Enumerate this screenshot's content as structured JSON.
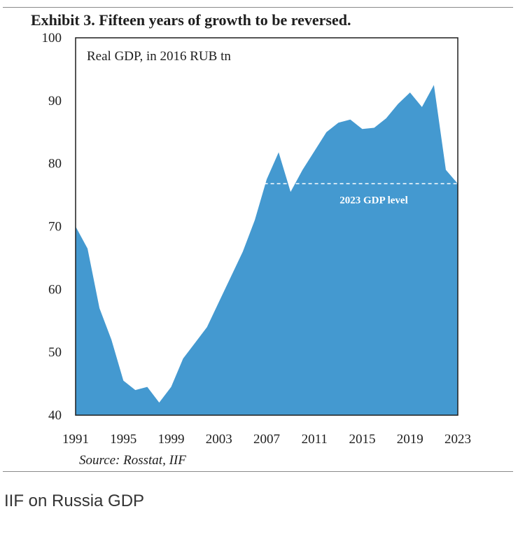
{
  "header": {
    "exhibit_title": "Exhibit 3. Fifteen years of growth to be reversed."
  },
  "footer": {
    "source": "Source: Rosstat, IIF",
    "caption": "IIF on Russia GDP"
  },
  "colors": {
    "area_fill": "#4499d0",
    "reference_line": "#ffffff",
    "text": "#1e1e1e"
  },
  "chart_data": {
    "type": "area",
    "title": "Real GDP, in 2016 RUB tn",
    "xlabel": "",
    "ylabel": "",
    "xlim": [
      1991,
      2023
    ],
    "ylim": [
      40,
      100
    ],
    "grid": false,
    "legend": "none",
    "x_ticks": [
      "1991",
      "1995",
      "1999",
      "2003",
      "2007",
      "2011",
      "2015",
      "2019",
      "2023"
    ],
    "y_ticks": [
      "100",
      "90",
      "80",
      "70",
      "60",
      "50",
      "40"
    ],
    "series": [
      {
        "x": [
          1991,
          1992,
          1993,
          1994,
          1995,
          1996,
          1997,
          1998,
          1999,
          2000,
          2001,
          2002,
          2003,
          2004,
          2005,
          2006,
          2007,
          2008,
          2009,
          2010,
          2011,
          2012,
          2013,
          2014,
          2015,
          2016,
          2017,
          2018,
          2019,
          2020,
          2021,
          2022,
          2023
        ],
        "values": [
          70,
          66.5,
          57,
          52,
          45.5,
          44,
          44.5,
          42,
          44.5,
          49,
          51.5,
          54,
          58,
          62,
          66,
          71,
          77.5,
          81.8,
          75.5,
          79,
          82,
          85,
          86.5,
          87,
          85.5,
          85.7,
          87.2,
          89.5,
          91.3,
          89,
          92.5,
          79,
          76.8
        ]
      }
    ],
    "reference_line": {
      "value": 76.8,
      "label": "2023 GDP level"
    }
  }
}
